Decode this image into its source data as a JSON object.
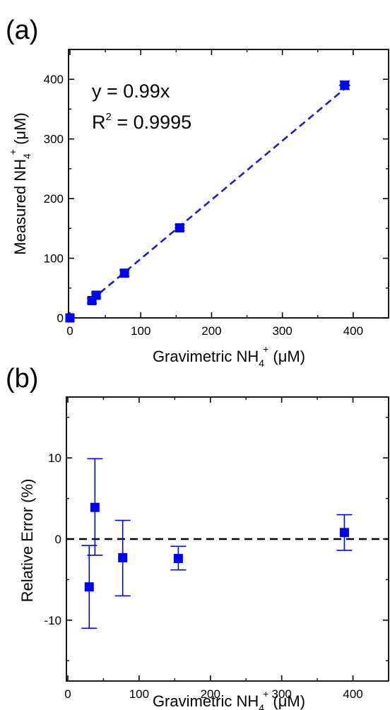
{
  "chart_data": [
    {
      "type": "scatter",
      "panel_label": "(a)",
      "xlabel_main": "Gravimetric NH",
      "xlabel_sub": "4",
      "xlabel_sup": "+",
      "xlabel_unit": " (μM)",
      "ylabel_main": "Measured NH",
      "ylabel_sub": "4",
      "ylabel_sup": "+",
      "ylabel_unit": " (μM)",
      "xlim": [
        -2,
        450
      ],
      "ylim": [
        0,
        450
      ],
      "xticks": [
        0,
        100,
        200,
        300,
        400
      ],
      "yticks": [
        0,
        100,
        200,
        300,
        400
      ],
      "grid": false,
      "annotations": {
        "equation": "y = 0.99x",
        "r2_label": "R",
        "r2_sup": "2",
        "r2_value": " = 0.9995"
      },
      "fit": {
        "slope": 0.99,
        "x_range": [
          30,
          388
        ],
        "style": "dashed",
        "color": "#1a1ad6"
      },
      "series": [
        {
          "color": "#0000ff",
          "marker": "square",
          "points": [
            {
              "x": 0,
              "y": 0,
              "xerr": 0,
              "yerr": 0
            },
            {
              "x": 31,
              "y": 29,
              "xerr": 4,
              "yerr": 4
            },
            {
              "x": 37,
              "y": 38,
              "xerr": 4,
              "yerr": 4
            },
            {
              "x": 77,
              "y": 75,
              "xerr": 5,
              "yerr": 5
            },
            {
              "x": 155,
              "y": 151,
              "xerr": 7,
              "yerr": 5
            },
            {
              "x": 388,
              "y": 390,
              "xerr": 8,
              "yerr": 7
            }
          ]
        }
      ]
    },
    {
      "type": "scatter",
      "panel_label": "(b)",
      "xlabel_main": "Gravimetric NH",
      "xlabel_sub": "4",
      "xlabel_sup": "+",
      "xlabel_unit": " (μM)",
      "ylabel": "Relative Error (%)",
      "xlim": [
        -2,
        450
      ],
      "ylim": [
        -17.5,
        17.5
      ],
      "xticks": [
        0,
        100,
        200,
        300,
        400
      ],
      "yticks": [
        -10,
        0,
        10
      ],
      "ytick_labels": [
        "-10",
        "0",
        "10"
      ],
      "grid": false,
      "reference_line": {
        "y": 0,
        "style": "dashed",
        "color": "#000000"
      },
      "series": [
        {
          "color": "#0000ff",
          "marker": "square",
          "points": [
            {
              "x": 30,
              "y": -5.9,
              "ylow": -11.0,
              "yhigh": -0.8
            },
            {
              "x": 38,
              "y": 3.9,
              "ylow": -2.0,
              "yhigh": 9.9
            },
            {
              "x": 77,
              "y": -2.3,
              "ylow": -7.0,
              "yhigh": 2.3
            },
            {
              "x": 155,
              "y": -2.4,
              "ylow": -3.8,
              "yhigh": -0.9
            },
            {
              "x": 388,
              "y": 0.8,
              "ylow": -1.4,
              "yhigh": 3.0
            }
          ]
        }
      ]
    }
  ]
}
